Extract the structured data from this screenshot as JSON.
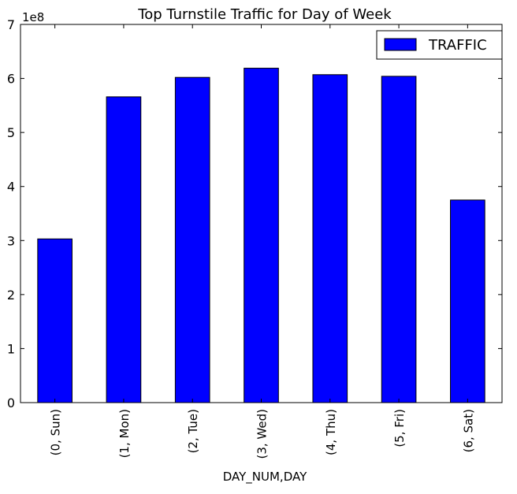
{
  "chart_data": {
    "type": "bar",
    "title": "Top Turnstile Traffic for Day of Week",
    "xlabel": "DAY_NUM,DAY",
    "ylabel": "",
    "y_offset_label": "1e8",
    "categories": [
      "(0, Sun)",
      "(1, Mon)",
      "(2, Tue)",
      "(3, Wed)",
      "(4, Thu)",
      "(5, Fri)",
      "(6, Sat)"
    ],
    "series": [
      {
        "name": "TRAFFIC",
        "color": "#0000ff",
        "values": [
          303000000,
          566000000,
          602000000,
          619000000,
          607000000,
          604000000,
          375000000
        ]
      }
    ],
    "ylim": [
      0,
      700000000
    ],
    "y_ticks": [
      0,
      100000000,
      200000000,
      300000000,
      400000000,
      500000000,
      600000000,
      700000000
    ],
    "y_tick_labels": [
      "0",
      "1",
      "2",
      "3",
      "4",
      "5",
      "6",
      "7"
    ],
    "grid": false,
    "legend_position": "top-right"
  }
}
